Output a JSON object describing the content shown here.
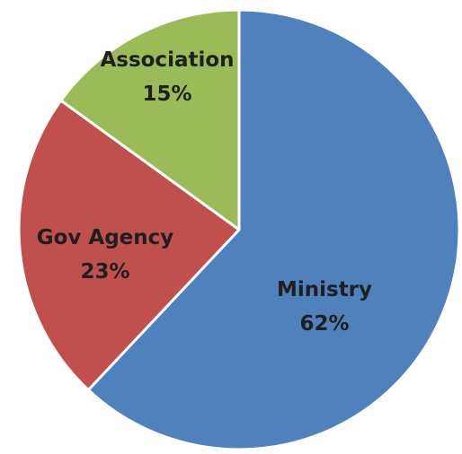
{
  "chart_data": {
    "type": "pie",
    "title": "",
    "legend": "none",
    "slices": [
      {
        "label": "Ministry",
        "value": 62,
        "value_label": "62%",
        "color": "#4F81BD"
      },
      {
        "label": "Gov Agency",
        "value": 23,
        "value_label": "23%",
        "color": "#C0504D"
      },
      {
        "label": "Association",
        "value": 15,
        "value_label": "15%",
        "color": "#9BBB59"
      }
    ]
  }
}
